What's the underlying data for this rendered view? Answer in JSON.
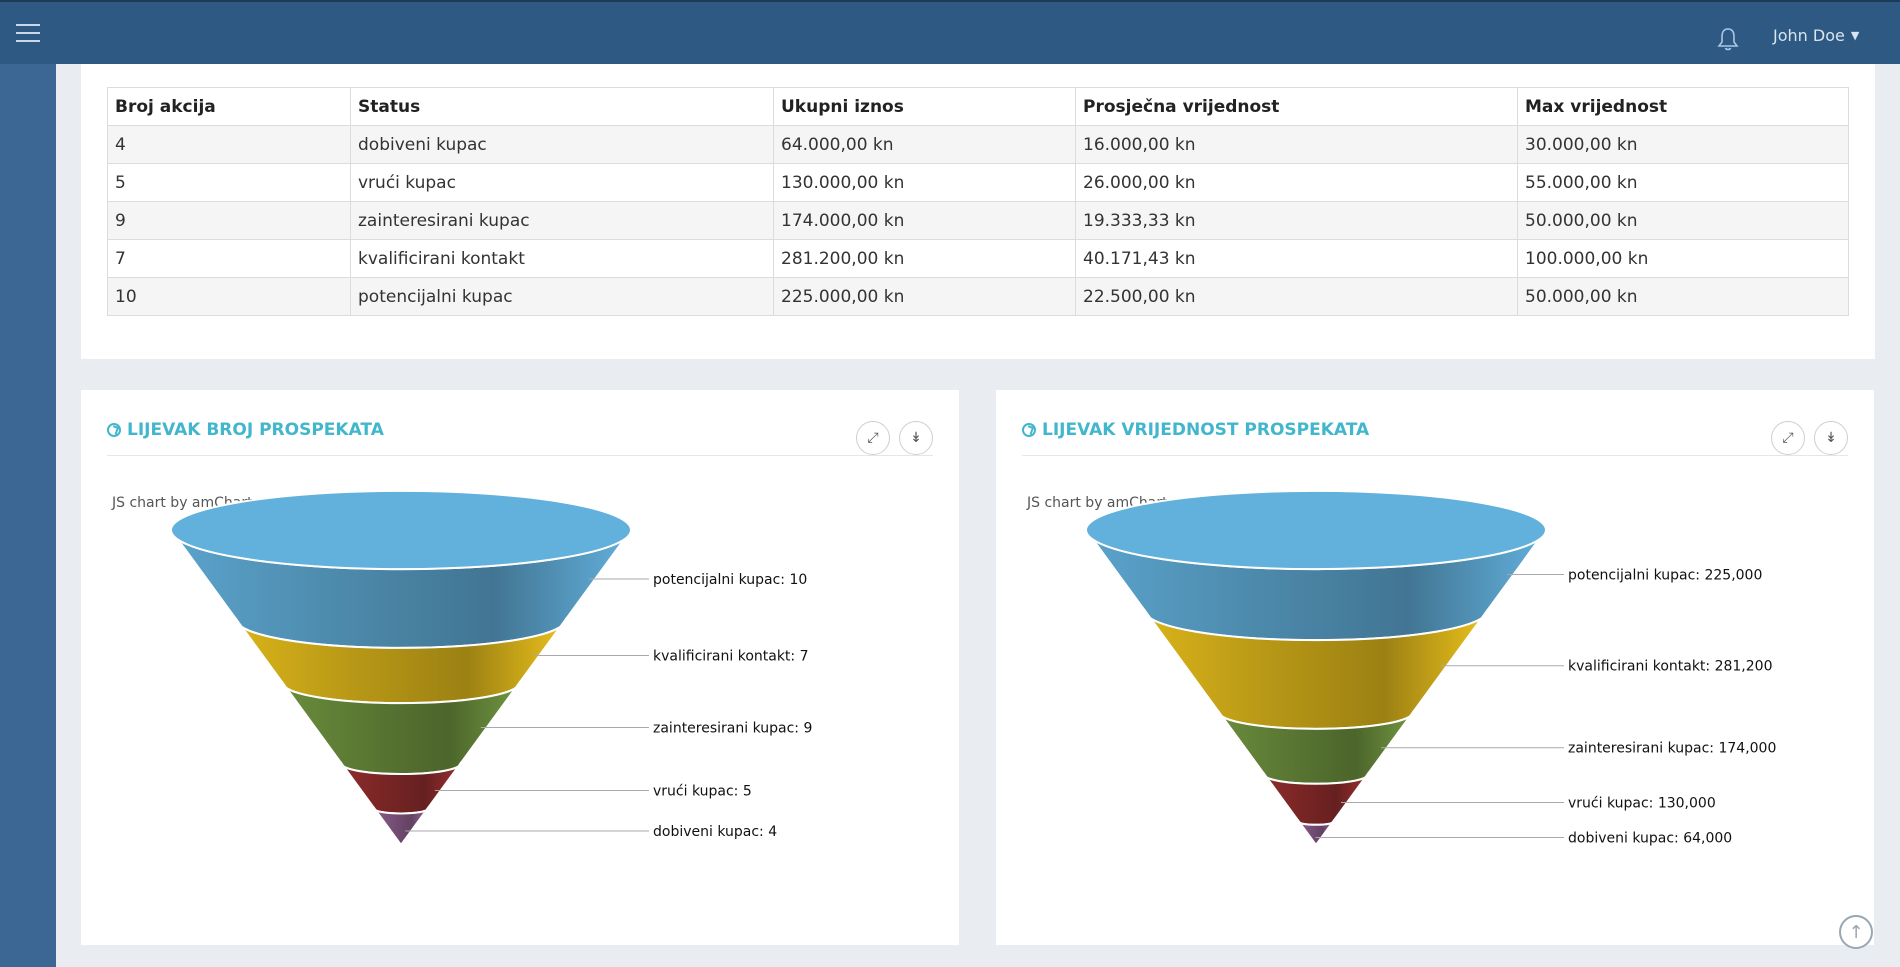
{
  "header": {
    "user_name": "John Doe"
  },
  "table": {
    "columns": [
      "Broj akcija",
      "Status",
      "Ukupni iznos",
      "Prosječna vrijednost",
      "Max vrijednost"
    ],
    "rows": [
      [
        "4",
        "dobiveni kupac",
        "64.000,00 kn",
        "16.000,00 kn",
        "30.000,00 kn"
      ],
      [
        "5",
        "vrući kupac",
        "130.000,00 kn",
        "26.000,00 kn",
        "55.000,00 kn"
      ],
      [
        "9",
        "zainteresirani kupac",
        "174.000,00 kn",
        "19.333,33 kn",
        "50.000,00 kn"
      ],
      [
        "7",
        "kvalificirani kontakt",
        "281.200,00 kn",
        "40.171,43 kn",
        "100.000,00 kn"
      ],
      [
        "10",
        "potencijalni kupac",
        "225.000,00 kn",
        "22.500,00 kn",
        "50.000,00 kn"
      ]
    ]
  },
  "cards": {
    "left_title": "LIJEVAK BROJ PROSPEKATA",
    "right_title": "LIJEVAK VRIJEDNOST PROSPEKATA",
    "credit": "JS chart by amCharts"
  },
  "colors": {
    "accent": "#41b6cc",
    "header": "#2e5983",
    "stage_blue": "#5ba3cc",
    "stage_yellow": "#d9b31a",
    "stage_green": "#6a8c3c",
    "stage_red": "#8e2c2c",
    "stage_purple": "#8a5c8a"
  },
  "chart_data": [
    {
      "type": "funnel",
      "stages": [
        {
          "label": "potencijalni kupac",
          "value": 10,
          "text": "potencijalni kupac: 10"
        },
        {
          "label": "kvalificirani kontakt",
          "value": 7,
          "text": "kvalificirani kontakt: 7"
        },
        {
          "label": "zainteresirani kupac",
          "value": 9,
          "text": "zainteresirani kupac: 9"
        },
        {
          "label": "vrući kupac",
          "value": 5,
          "text": "vrući kupac: 5"
        },
        {
          "label": "dobiveni kupac",
          "value": 4,
          "text": "dobiveni kupac: 4"
        }
      ]
    },
    {
      "type": "funnel",
      "stages": [
        {
          "label": "potencijalni kupac",
          "value": 225000,
          "text": "potencijalni kupac: 225,000"
        },
        {
          "label": "kvalificirani kontakt",
          "value": 281200,
          "text": "kvalificirani kontakt: 281,200"
        },
        {
          "label": "zainteresirani kupac",
          "value": 174000,
          "text": "zainteresirani kupac: 174,000"
        },
        {
          "label": "vrući kupac",
          "value": 130000,
          "text": "vrući kupac: 130,000"
        },
        {
          "label": "dobiveni kupac",
          "value": 64000,
          "text": "dobiveni kupac: 64,000"
        }
      ]
    }
  ]
}
